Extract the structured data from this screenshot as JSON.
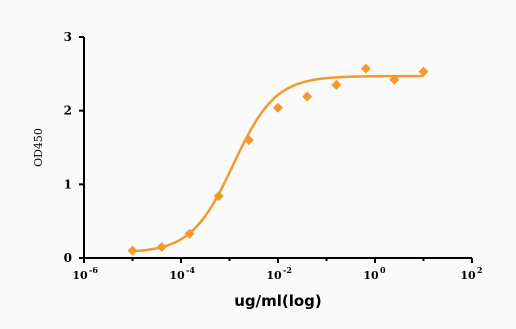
{
  "chart_data": {
    "type": "scatter",
    "title": "",
    "xlabel": "ug/ml(log)",
    "ylabel": "OD450",
    "x_scale": "log",
    "xlim": [
      1e-06,
      100
    ],
    "ylim": [
      0,
      3
    ],
    "x_ticks": [
      {
        "base": "10",
        "exp": "-6",
        "value": 1e-06
      },
      {
        "base": "10",
        "exp": "-4",
        "value": 0.0001
      },
      {
        "base": "10",
        "exp": "-2",
        "value": 0.01
      },
      {
        "base": "10",
        "exp": "0",
        "value": 1
      },
      {
        "base": "10",
        "exp": "2",
        "value": 100
      }
    ],
    "y_ticks": [
      "0",
      "1",
      "2",
      "3"
    ],
    "grid": false,
    "color": "#f29a2e",
    "series": [
      {
        "marker": "diamond",
        "x": [
          1e-05,
          4e-05,
          0.00015,
          0.0006,
          0.0025,
          0.01,
          0.04,
          0.16,
          0.65,
          2.5,
          10
        ],
        "y": [
          0.1,
          0.15,
          0.33,
          0.84,
          1.6,
          2.04,
          2.19,
          2.35,
          2.57,
          2.42,
          2.53
        ]
      }
    ],
    "fit": {
      "type": "4PL",
      "bottom": 0.07,
      "top": 2.47,
      "ec50": 0.0012,
      "hill": 1.0
    }
  }
}
